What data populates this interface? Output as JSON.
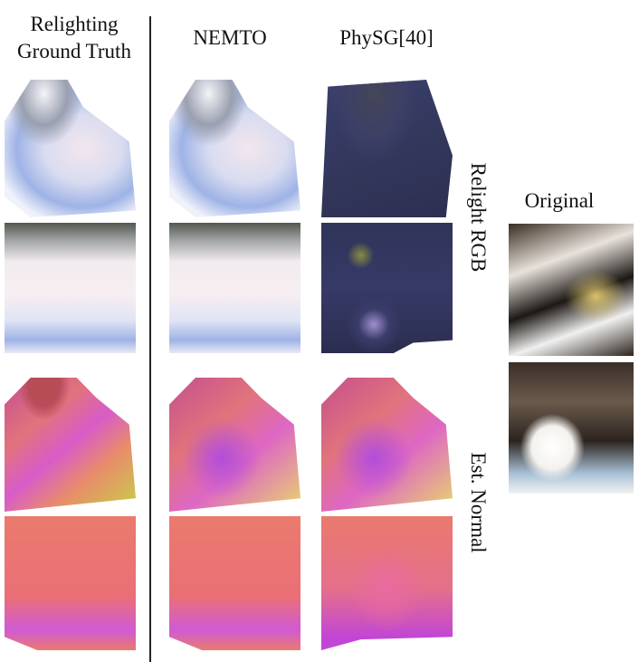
{
  "headers": {
    "gt": [
      "Relighting",
      "Ground Truth"
    ],
    "nemto": "NEMTO",
    "physg": "PhySG[40]"
  },
  "row_labels": [
    "Relight RGB",
    "Est. Normal"
  ],
  "original_label": "Original"
}
